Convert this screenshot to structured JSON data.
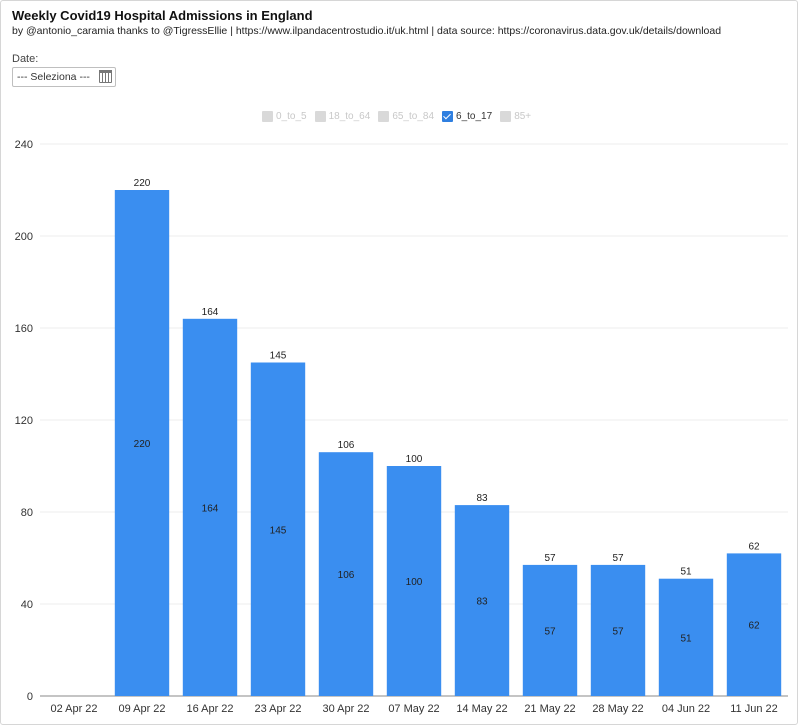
{
  "header": {
    "title": "Weekly Covid19 Hospital Admissions in England",
    "subtitle": "by @antonio_caramia thanks to @TigressEllie | https://www.ilpandacentrostudio.it/uk.html | data source: https://coronavirus.data.gov.uk/details/download"
  },
  "filter": {
    "label": "Date:",
    "value": "--- Seleziona ---",
    "icon": "calendar-icon"
  },
  "legend": {
    "items": [
      {
        "label": "0_to_5",
        "active": false
      },
      {
        "label": "18_to_64",
        "active": false
      },
      {
        "label": "65_to_84",
        "active": false
      },
      {
        "label": "6_to_17",
        "active": true
      },
      {
        "label": "85+",
        "active": false
      }
    ]
  },
  "colors": {
    "bar": "#3a8ef0",
    "active_legend": "#2f7fe0",
    "inactive_legend": "#d9d9d9"
  },
  "chart_data": {
    "type": "bar",
    "title": "",
    "xlabel": "",
    "ylabel": "",
    "categories": [
      "02 Apr 22",
      "09 Apr 22",
      "16 Apr 22",
      "23 Apr 22",
      "30 Apr 22",
      "07 May 22",
      "14 May 22",
      "21 May 22",
      "28 May 22",
      "04 Jun 22",
      "11 Jun 22"
    ],
    "series": [
      {
        "name": "6_to_17",
        "values": [
          null,
          220,
          164,
          145,
          106,
          100,
          83,
          57,
          57,
          51,
          62
        ]
      }
    ],
    "ylim": [
      0,
      240
    ],
    "yticks": [
      0,
      40,
      80,
      120,
      160,
      200,
      240
    ],
    "grid": true,
    "legend_position": "top-center"
  }
}
